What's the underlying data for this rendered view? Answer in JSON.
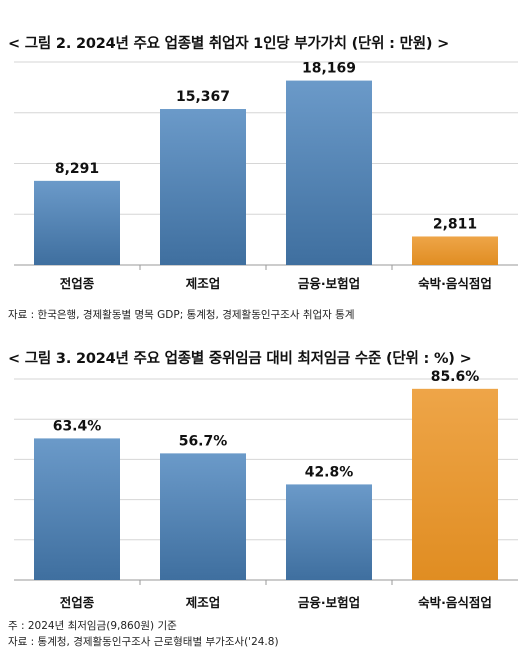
{
  "chart_data": [
    {
      "type": "bar",
      "title": "< 그림 2. 2024년 주요 업종별 취업자 1인당 부가가치 (단위 : 만원) >",
      "categories": [
        "전업종",
        "제조업",
        "금융·보험업",
        "숙박·음식점업"
      ],
      "values": [
        8291,
        15367,
        18169,
        2811
      ],
      "value_labels": [
        "8,291",
        "15,367",
        "18,169",
        "2,811"
      ],
      "colors": [
        "#4a7eb4",
        "#4a7eb4",
        "#4a7eb4",
        "#e69a34"
      ],
      "ylim": [
        0,
        20000
      ],
      "grid": true,
      "source": "자료 : 한국은행, 경제활동별 명목 GDP; 통계청, 경제활동인구조사 취업자 통계"
    },
    {
      "type": "bar",
      "title": "< 그림 3. 2024년 주요 업종별 중위임금 대비 최저임금 수준 (단위 : %) >",
      "categories": [
        "전업종",
        "제조업",
        "금융·보험업",
        "숙박·음식점업"
      ],
      "values": [
        63.4,
        56.7,
        42.8,
        85.6
      ],
      "value_labels": [
        "63.4%",
        "56.7%",
        "42.8%",
        "85.6%"
      ],
      "colors": [
        "#4a7eb4",
        "#4a7eb4",
        "#4a7eb4",
        "#e69a34"
      ],
      "ylim": [
        0,
        90
      ],
      "grid": true,
      "note": "주 : 2024년 최저임금(9,860원) 기준",
      "source": "자료 : 통계청, 경제활동인구조사 근로형태별 부가조사('24.8)"
    }
  ]
}
